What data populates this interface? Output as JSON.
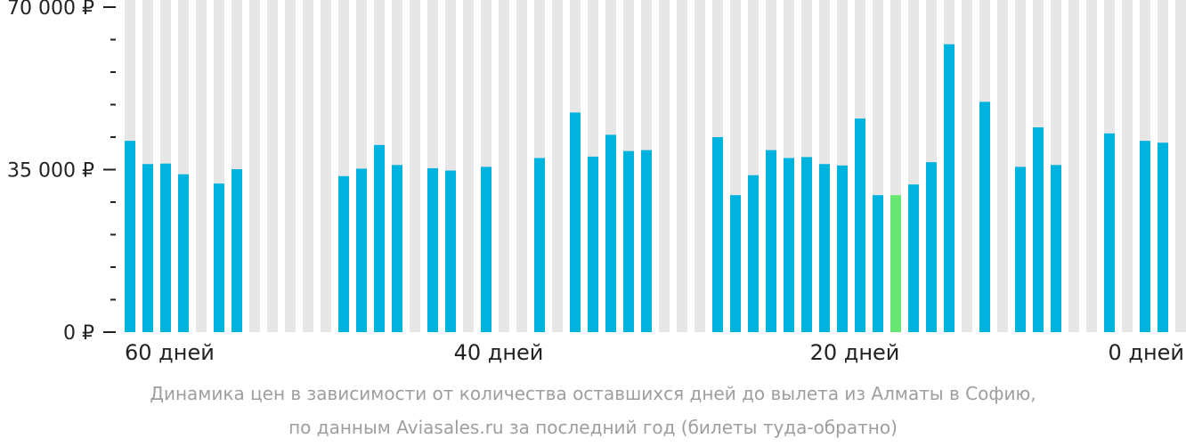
{
  "chart_data": {
    "type": "bar",
    "x_reversed": true,
    "days_ticks": [
      60,
      40,
      20,
      0
    ],
    "x_tick_labels": [
      "60 дней",
      "40 дней",
      "20 дней",
      "0 дней"
    ],
    "y_tick_labels": [
      "0 ₽",
      "35 000 ₽",
      "70 000 ₽"
    ],
    "ylim": [
      0,
      70000
    ],
    "y_major_ticks": [
      0,
      35000,
      70000
    ],
    "y_minor_step": 7000,
    "days": [
      60,
      59,
      58,
      57,
      56,
      55,
      54,
      53,
      52,
      51,
      50,
      49,
      48,
      47,
      46,
      45,
      44,
      43,
      42,
      41,
      40,
      39,
      38,
      37,
      36,
      35,
      34,
      33,
      32,
      31,
      30,
      29,
      28,
      27,
      26,
      25,
      24,
      23,
      22,
      21,
      20,
      19,
      18,
      17,
      16,
      15,
      14,
      13,
      12,
      11,
      10,
      9,
      8,
      7,
      6,
      5,
      4,
      3,
      2,
      1,
      0
    ],
    "values": [
      41200,
      36200,
      36300,
      34000,
      null,
      32000,
      35100,
      null,
      null,
      null,
      null,
      null,
      33600,
      35200,
      40300,
      36000,
      null,
      35300,
      34800,
      null,
      35600,
      null,
      null,
      37500,
      null,
      47300,
      37800,
      42500,
      39000,
      39200,
      null,
      null,
      null,
      42000,
      29500,
      33800,
      39200,
      37500,
      37700,
      36200,
      35900,
      46000,
      29500,
      29500,
      31800,
      36600,
      62000,
      null,
      49600,
      null,
      35600,
      44100,
      36000,
      null,
      null,
      42800,
      null,
      41200,
      40800,
      null,
      null
    ],
    "min_day": 17,
    "colors": {
      "bar": "#00b2de",
      "min_bar": "#66e672",
      "background_bar": "#e6e6e6"
    },
    "caption_lines": [
      "Динамика цен в зависимости от количества оставшихся дней до вылета из Алматы в Софию,",
      "по данным Aviasales.ru за последний год (билеты туда-обратно)"
    ]
  }
}
